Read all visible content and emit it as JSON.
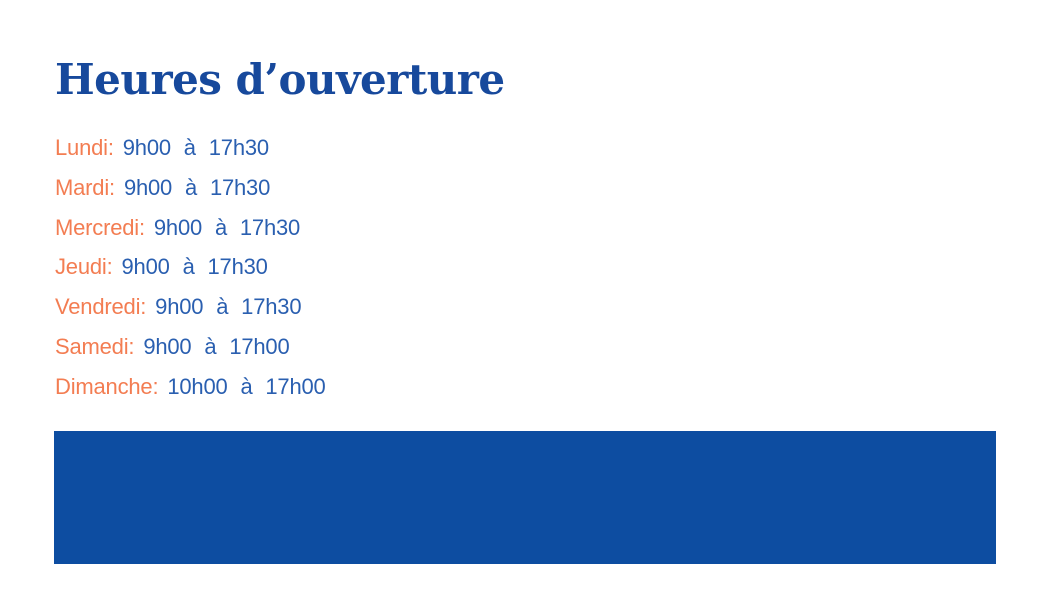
{
  "page": {
    "title": "Heures d’ouverture"
  },
  "hours": {
    "items": [
      {
        "day": "Lundi:",
        "hours": "9h00 à 17h30"
      },
      {
        "day": "Mardi:",
        "hours": "9h00 à 17h30"
      },
      {
        "day": "Mercredi:",
        "hours": "9h00 à 17h30"
      },
      {
        "day": "Jeudi:",
        "hours": "9h00 à 17h30"
      },
      {
        "day": "Vendredi:",
        "hours": "9h00 à 17h30"
      },
      {
        "day": "Samedi:",
        "hours": "9h00 à 17h00"
      },
      {
        "day": "Dimanche:",
        "hours": "10h00 à 17h00"
      }
    ]
  },
  "colors": {
    "background": "#ffffff",
    "title": "#17499c",
    "day": "#f37d52",
    "time": "#2a5fb0",
    "block": "#0d4da1"
  }
}
